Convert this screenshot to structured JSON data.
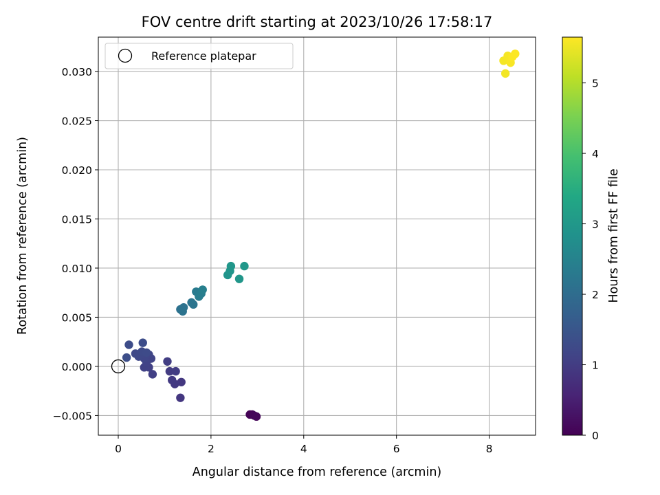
{
  "chart_data": {
    "type": "scatter",
    "title": "FOV centre drift starting at 2023/10/26 17:58:17",
    "xlabel": "Angular distance from reference (arcmin)",
    "ylabel": "Rotation from reference (arcmin)",
    "xlim": [
      -0.43,
      9.0
    ],
    "ylim": [
      -0.007,
      0.0335
    ],
    "xticks": [
      0,
      2,
      4,
      6,
      8
    ],
    "xtick_labels": [
      "0",
      "2",
      "4",
      "6",
      "8"
    ],
    "yticks": [
      -0.005,
      0.0,
      0.005,
      0.01,
      0.015,
      0.02,
      0.025,
      0.03
    ],
    "ytick_labels": [
      "−0.005",
      "0.000",
      "0.005",
      "0.010",
      "0.015",
      "0.020",
      "0.025",
      "0.030"
    ],
    "grid": true,
    "legend": {
      "placement": "top-left",
      "entries": [
        "Reference platepar"
      ]
    },
    "reference_point": {
      "x": 0.0,
      "y": 0.0
    },
    "colorbar": {
      "label": "Hours from first FF file",
      "range": [
        0,
        5.65
      ],
      "ticks": [
        0,
        1,
        2,
        3,
        4,
        5
      ],
      "tick_labels": [
        "0",
        "1",
        "2",
        "3",
        "4",
        "5"
      ],
      "colormap": "viridis"
    },
    "points": [
      {
        "x": 2.84,
        "y": -0.0049,
        "t": 0.02
      },
      {
        "x": 2.89,
        "y": -0.0049,
        "t": 0.04
      },
      {
        "x": 2.93,
        "y": -0.005,
        "t": 0.06
      },
      {
        "x": 2.98,
        "y": -0.0051,
        "t": 0.08
      },
      {
        "x": 1.34,
        "y": -0.0032,
        "t": 0.9
      },
      {
        "x": 1.36,
        "y": -0.0016,
        "t": 0.92
      },
      {
        "x": 1.22,
        "y": -0.0018,
        "t": 0.94
      },
      {
        "x": 1.16,
        "y": -0.0014,
        "t": 0.96
      },
      {
        "x": 1.11,
        "y": -0.0005,
        "t": 0.98
      },
      {
        "x": 1.24,
        "y": -0.0005,
        "t": 1.0
      },
      {
        "x": 1.06,
        "y": 0.0005,
        "t": 1.02
      },
      {
        "x": 0.74,
        "y": -0.0008,
        "t": 1.06
      },
      {
        "x": 0.66,
        "y": -0.0001,
        "t": 1.08
      },
      {
        "x": 0.56,
        "y": -0.0001,
        "t": 1.1
      },
      {
        "x": 0.61,
        "y": 0.0004,
        "t": 1.12
      },
      {
        "x": 0.71,
        "y": 0.0008,
        "t": 1.14
      },
      {
        "x": 0.66,
        "y": 0.0012,
        "t": 1.16
      },
      {
        "x": 0.56,
        "y": 0.0008,
        "t": 1.18
      },
      {
        "x": 0.49,
        "y": 0.0012,
        "t": 1.2
      },
      {
        "x": 0.44,
        "y": 0.001,
        "t": 1.22
      },
      {
        "x": 0.37,
        "y": 0.0013,
        "t": 1.24
      },
      {
        "x": 0.51,
        "y": 0.0015,
        "t": 1.26
      },
      {
        "x": 0.61,
        "y": 0.0014,
        "t": 1.28
      },
      {
        "x": 0.23,
        "y": 0.0022,
        "t": 1.3
      },
      {
        "x": 0.53,
        "y": 0.0024,
        "t": 1.32
      },
      {
        "x": 0.18,
        "y": 0.0009,
        "t": 1.34
      },
      {
        "x": 1.34,
        "y": 0.0058,
        "t": 2.1
      },
      {
        "x": 1.41,
        "y": 0.006,
        "t": 2.12
      },
      {
        "x": 1.39,
        "y": 0.0056,
        "t": 2.14
      },
      {
        "x": 1.58,
        "y": 0.0065,
        "t": 2.18
      },
      {
        "x": 1.62,
        "y": 0.0063,
        "t": 2.2
      },
      {
        "x": 1.68,
        "y": 0.0076,
        "t": 2.3
      },
      {
        "x": 1.74,
        "y": 0.0071,
        "t": 2.34
      },
      {
        "x": 1.79,
        "y": 0.0074,
        "t": 2.38
      },
      {
        "x": 1.82,
        "y": 0.0078,
        "t": 2.42
      },
      {
        "x": 2.36,
        "y": 0.0093,
        "t": 2.9
      },
      {
        "x": 2.41,
        "y": 0.0097,
        "t": 2.92
      },
      {
        "x": 2.43,
        "y": 0.0102,
        "t": 2.94
      },
      {
        "x": 2.61,
        "y": 0.0089,
        "t": 2.96
      },
      {
        "x": 2.72,
        "y": 0.0102,
        "t": 2.98
      },
      {
        "x": 8.35,
        "y": 0.0298,
        "t": 5.55
      },
      {
        "x": 8.31,
        "y": 0.0311,
        "t": 5.57
      },
      {
        "x": 8.4,
        "y": 0.0316,
        "t": 5.59
      },
      {
        "x": 8.46,
        "y": 0.0309,
        "t": 5.61
      },
      {
        "x": 8.5,
        "y": 0.0315,
        "t": 5.63
      },
      {
        "x": 8.56,
        "y": 0.0318,
        "t": 5.64
      }
    ]
  }
}
